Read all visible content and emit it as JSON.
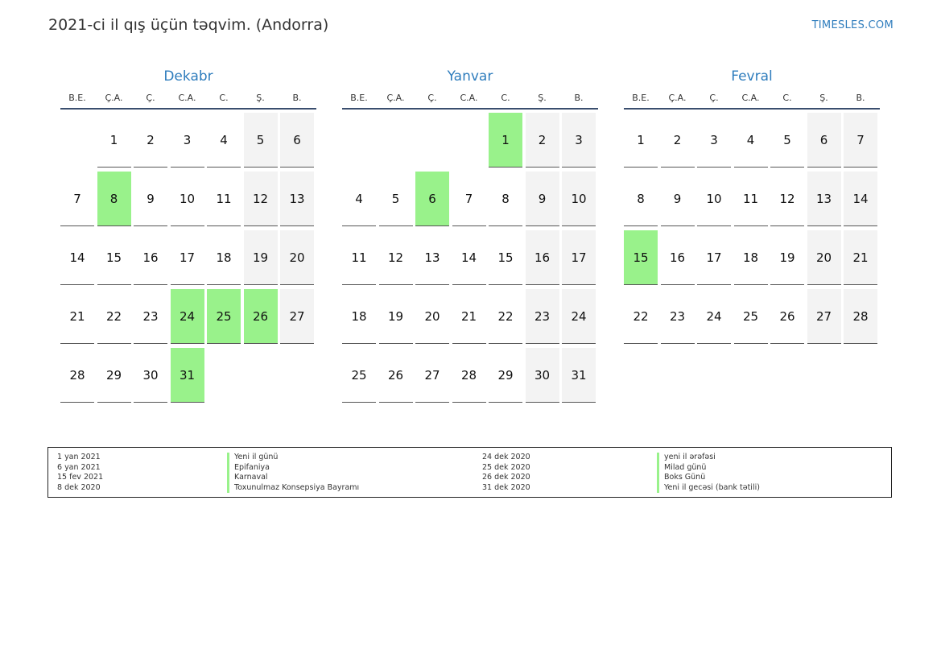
{
  "header": {
    "title": "2021-ci il qış üçün təqvim. (Andorra)",
    "site": "TIMESLES.COM"
  },
  "weekday_labels": [
    "B.E.",
    "Ç.A.",
    "Ç.",
    "C.A.",
    "C.",
    "Ş.",
    "B."
  ],
  "colors": {
    "accent": "#2f7dbd",
    "holiday": "#99f28b",
    "weekend": "#f3f3f3",
    "rule": "#3a4e6e"
  },
  "months": [
    {
      "name": "Dekabr",
      "start_offset": 1,
      "days": 31,
      "holidays": [
        8,
        24,
        25,
        26,
        31
      ]
    },
    {
      "name": "Yanvar",
      "start_offset": 4,
      "days": 31,
      "holidays": [
        1,
        6
      ]
    },
    {
      "name": "Fevral",
      "start_offset": 0,
      "days": 28,
      "holidays": [
        15
      ]
    }
  ],
  "legend": {
    "left": [
      {
        "date": "1 yan 2021",
        "name": "Yeni il günü"
      },
      {
        "date": "6 yan 2021",
        "name": "Epifaniya"
      },
      {
        "date": "15 fev 2021",
        "name": "Karnaval"
      },
      {
        "date": "8 dek 2020",
        "name": "Toxunulmaz Konsepsiya Bayramı"
      }
    ],
    "right": [
      {
        "date": "24 dek 2020",
        "name": "yeni il ərəfəsi"
      },
      {
        "date": "25 dek 2020",
        "name": "Milad günü"
      },
      {
        "date": "26 dek 2020",
        "name": "Boks Günü"
      },
      {
        "date": "31 dek 2020",
        "name": "Yeni il gecəsi (bank tətili)"
      }
    ]
  }
}
